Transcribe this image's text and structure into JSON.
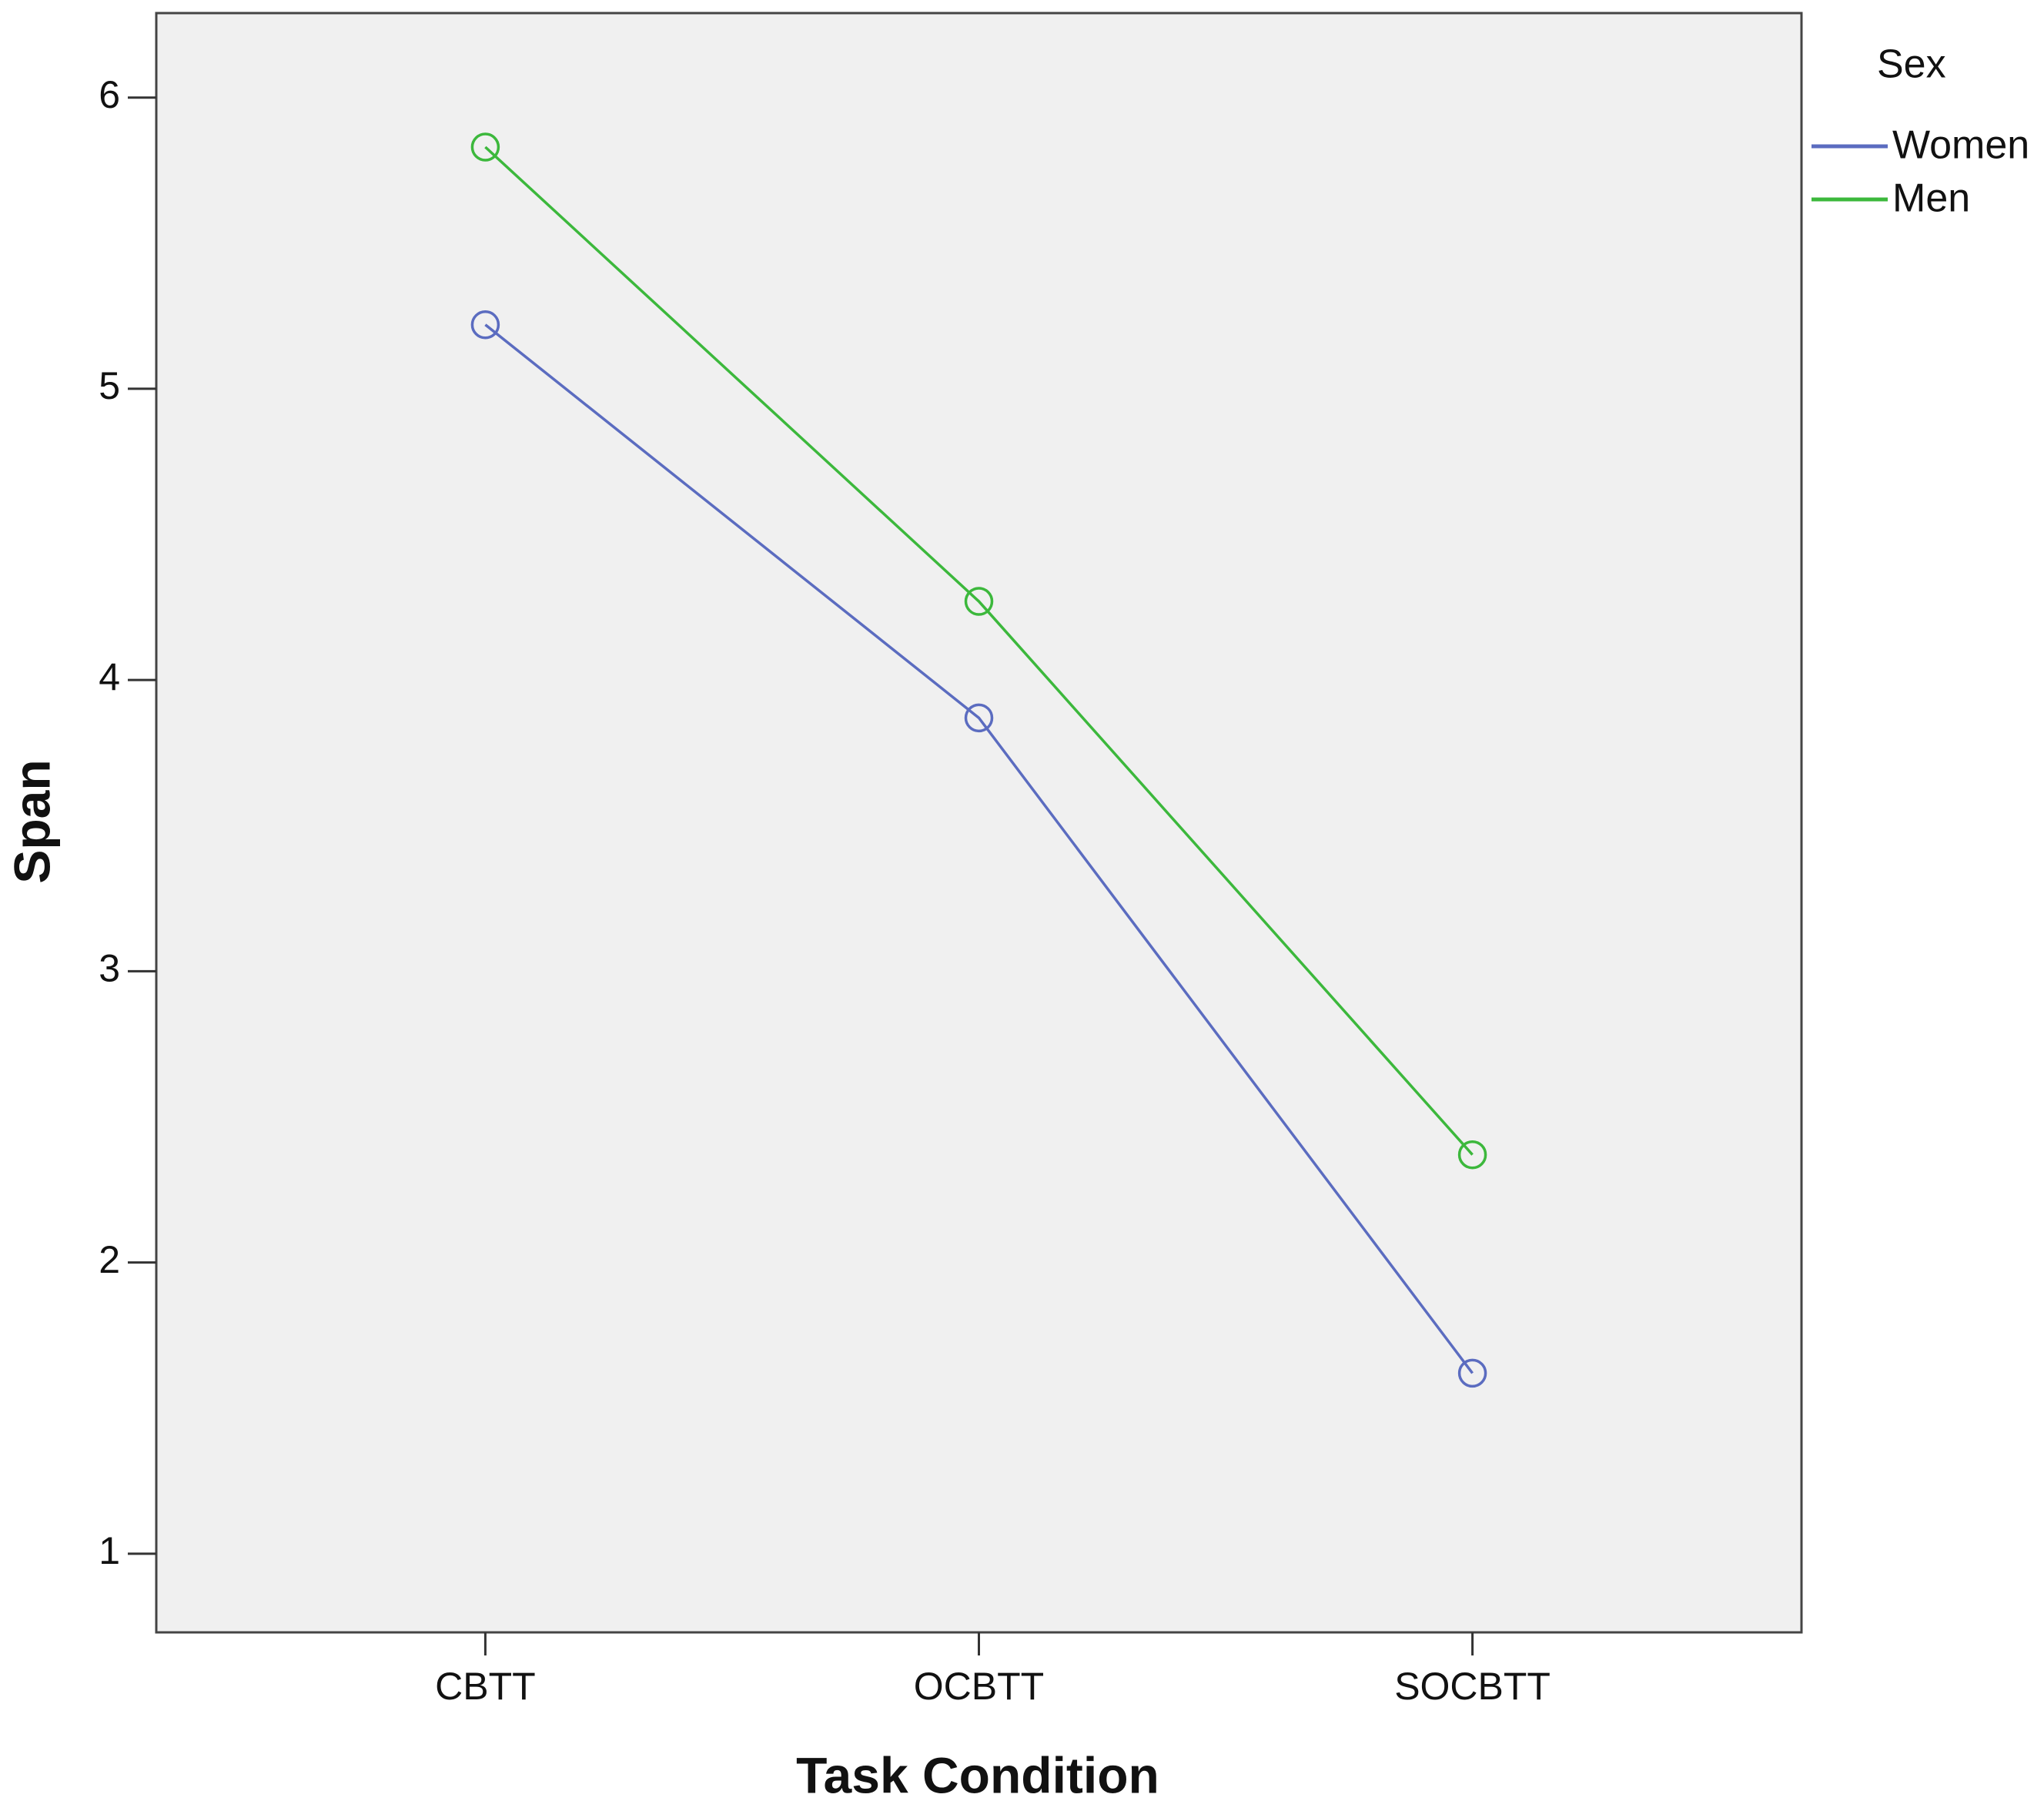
{
  "chart_data": {
    "type": "line",
    "x_label": "Task Condition",
    "y_label": "Span",
    "categories": [
      "CBTT",
      "OCBTT",
      "SOCBTT"
    ],
    "legend_title": "Sex",
    "legend": "right",
    "series": [
      {
        "name": "Women",
        "color": "#5b6cc0",
        "values": [
          5.22,
          3.87,
          1.62
        ]
      },
      {
        "name": "Men",
        "color": "#3cb83c",
        "values": [
          5.83,
          4.27,
          2.37
        ]
      }
    ],
    "ylim": [
      0.73,
      6.29
    ],
    "yticks": [
      1,
      2,
      3,
      4,
      5,
      6
    ],
    "grid": false,
    "marker": "circle"
  }
}
